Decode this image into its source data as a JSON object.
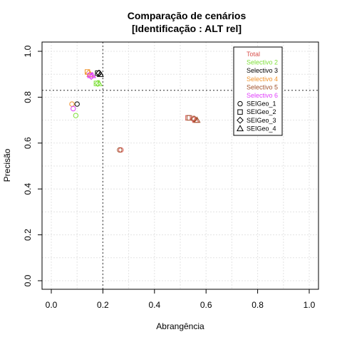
{
  "chart_data": {
    "type": "scatter",
    "title": "Comparação de cenários",
    "subtitle": "[Identificação : ALT rel]",
    "xlabel": "Abrangência",
    "ylabel": "Precisão",
    "xlim": [
      0,
      1
    ],
    "ylim": [
      0,
      1
    ],
    "xticks": [
      "0.0",
      "0.2",
      "0.4",
      "0.6",
      "0.8",
      "1.0"
    ],
    "yticks": [
      "0.0",
      "0.2",
      "0.4",
      "0.6",
      "0.8",
      "1.0"
    ],
    "grid": true,
    "reference_lines": {
      "vertical_x": 0.2,
      "horizontal_y": 0.83
    },
    "legend_position": "top-right",
    "series": [
      {
        "name": "Total",
        "color": "#d9534f",
        "points": [
          {
            "x": 0.27,
            "y": 0.57,
            "shape": "circle"
          },
          {
            "x": 0.53,
            "y": 0.71,
            "shape": "square"
          },
          {
            "x": 0.55,
            "y": 0.705,
            "shape": "diamond"
          },
          {
            "x": 0.56,
            "y": 0.7,
            "shape": "triangle"
          }
        ]
      },
      {
        "name": "Selectivo 2",
        "color": "#7fe03a",
        "points": [
          {
            "x": 0.095,
            "y": 0.72,
            "shape": "circle"
          },
          {
            "x": 0.175,
            "y": 0.86,
            "shape": "square"
          },
          {
            "x": 0.18,
            "y": 0.86,
            "shape": "diamond"
          },
          {
            "x": 0.185,
            "y": 0.86,
            "shape": "triangle"
          }
        ]
      },
      {
        "name": "Selectivo 3",
        "color": "#000000",
        "points": [
          {
            "x": 0.1,
            "y": 0.77,
            "shape": "circle"
          },
          {
            "x": 0.18,
            "y": 0.905,
            "shape": "square"
          },
          {
            "x": 0.185,
            "y": 0.905,
            "shape": "diamond"
          },
          {
            "x": 0.19,
            "y": 0.9,
            "shape": "triangle"
          }
        ]
      },
      {
        "name": "Selectivo 4",
        "color": "#f0932b",
        "points": [
          {
            "x": 0.08,
            "y": 0.77,
            "shape": "circle"
          },
          {
            "x": 0.14,
            "y": 0.91,
            "shape": "square"
          },
          {
            "x": 0.145,
            "y": 0.905,
            "shape": "diamond"
          },
          {
            "x": 0.15,
            "y": 0.9,
            "shape": "triangle"
          }
        ]
      },
      {
        "name": "Selectivo 5",
        "color": "#a0522d",
        "points": [
          {
            "x": 0.265,
            "y": 0.57,
            "shape": "circle"
          },
          {
            "x": 0.535,
            "y": 0.71,
            "shape": "square"
          },
          {
            "x": 0.555,
            "y": 0.705,
            "shape": "diamond"
          },
          {
            "x": 0.565,
            "y": 0.7,
            "shape": "triangle"
          }
        ]
      },
      {
        "name": "Selectivo 6",
        "color": "#e040fb",
        "points": [
          {
            "x": 0.085,
            "y": 0.75,
            "shape": "circle"
          },
          {
            "x": 0.15,
            "y": 0.895,
            "shape": "square"
          },
          {
            "x": 0.155,
            "y": 0.89,
            "shape": "diamond"
          },
          {
            "x": 0.16,
            "y": 0.895,
            "shape": "triangle"
          }
        ]
      }
    ],
    "shape_legend": [
      {
        "name": "SEIGeo_1",
        "shape": "circle"
      },
      {
        "name": "SEIGeo_2",
        "shape": "square"
      },
      {
        "name": "SEIGeo_3",
        "shape": "diamond"
      },
      {
        "name": "SEIGeo_4",
        "shape": "triangle"
      }
    ]
  }
}
